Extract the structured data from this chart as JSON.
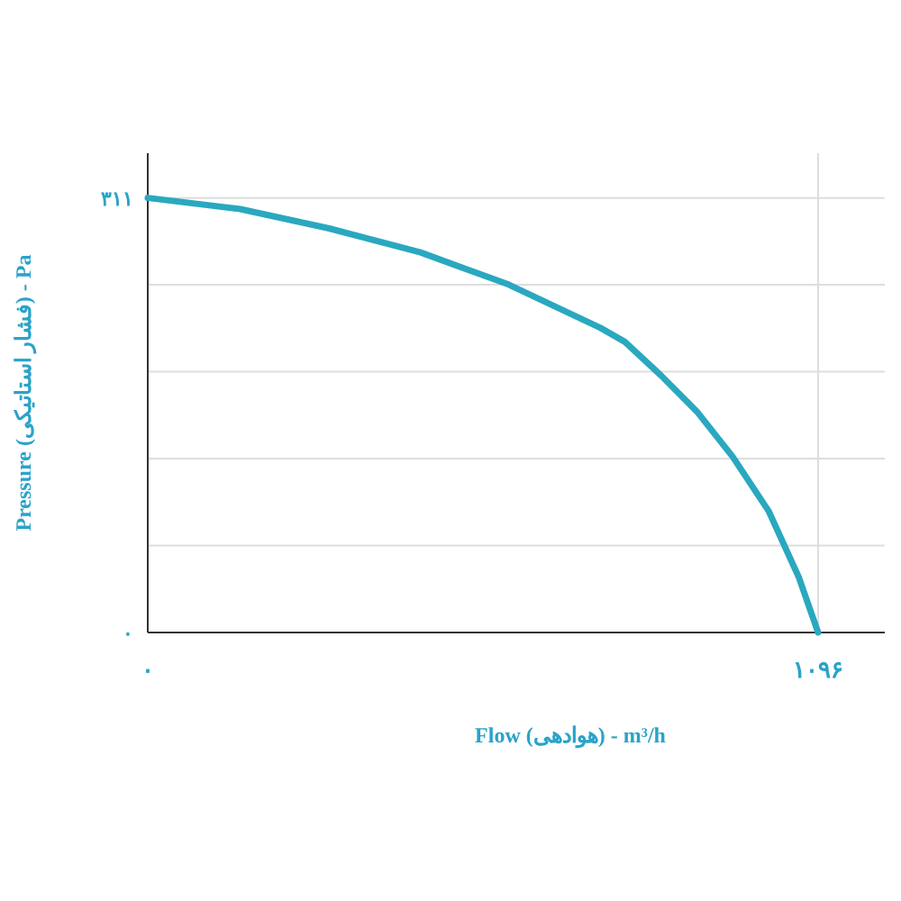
{
  "chart_data": {
    "type": "line",
    "xlabel": "Flow (هوادهی) - m³/h",
    "ylabel": "Pressure (فشار استاتیکی) - Pa",
    "x": [
      0,
      151,
      298,
      446,
      590,
      740,
      780,
      839,
      898,
      956,
      1015,
      1064,
      1096
    ],
    "series": [
      {
        "color": "#2aa8c0",
        "values": [
          311,
          303,
          289,
          272,
          249,
          218,
          208,
          184,
          158,
          126,
          87,
          40,
          0
        ]
      }
    ],
    "xlim": [
      0,
      1205
    ],
    "ylim": [
      0,
      343
    ],
    "xticks": [
      {
        "value": 0,
        "label": "۰"
      },
      {
        "value": 1096,
        "label": "۱۰۹۶"
      }
    ],
    "yticks": [
      {
        "value": 0,
        "label": "۰"
      },
      {
        "value": 62.2,
        "label": null
      },
      {
        "value": 124.4,
        "label": null
      },
      {
        "value": 186.6,
        "label": null
      },
      {
        "value": 248.8,
        "label": null
      },
      {
        "value": 311,
        "label": "۳۱۱"
      }
    ],
    "grid": true
  }
}
